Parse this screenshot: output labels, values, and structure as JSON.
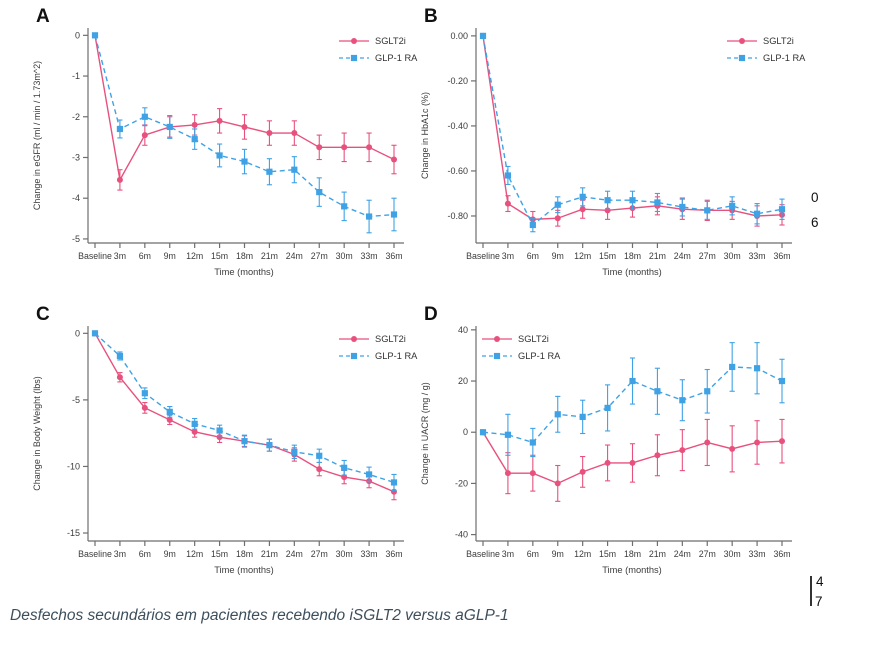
{
  "caption": "Desfechos secundários em pacientes recebendo iSGLT2 versus aGLP-1",
  "colors": {
    "sglt2i": "#e8517e",
    "glp1_ra": "#3ea2e5",
    "axis": "#6e6e6e",
    "tick_text": "#3c3c3c",
    "caption_text": "#3d4f5c"
  },
  "edge_fragments": {
    "mid_right_top": "0",
    "mid_right_bottom": "6",
    "page_line1": "4",
    "page_line2": "7"
  },
  "chart_data": [
    {
      "type": "line",
      "panel_label": "A",
      "ylabel": "Change in eGFR (ml / min / 1.73m^2)",
      "xlabel": "Time (months)",
      "categories": [
        "Baseline",
        "3m",
        "6m",
        "9m",
        "12m",
        "15m",
        "18m",
        "21m",
        "24m",
        "27m",
        "30m",
        "33m",
        "36m"
      ],
      "ylim": [
        -5.1,
        0.18
      ],
      "yticks": [
        0,
        -1,
        -2,
        -3,
        -4,
        -5
      ],
      "ytick_labels": [
        "0",
        "-1",
        "-2",
        "-3",
        "-4",
        "-5"
      ],
      "grid": false,
      "legend_position": "top-right",
      "series": [
        {
          "name": "SGLT2i",
          "color": "#e8517e",
          "marker": "circle",
          "line": "solid",
          "values": [
            0,
            -3.55,
            -2.45,
            -2.25,
            -2.2,
            -2.1,
            -2.25,
            -2.4,
            -2.4,
            -2.75,
            -2.75,
            -2.75,
            -3.05
          ],
          "errors": [
            0.05,
            0.25,
            0.25,
            0.25,
            0.25,
            0.3,
            0.3,
            0.3,
            0.3,
            0.3,
            0.35,
            0.35,
            0.35
          ]
        },
        {
          "name": "GLP-1 RA",
          "color": "#3ea2e5",
          "marker": "square",
          "line": "dashed",
          "values": [
            0,
            -2.3,
            -2.0,
            -2.25,
            -2.55,
            -2.95,
            -3.1,
            -3.35,
            -3.3,
            -3.85,
            -4.2,
            -4.45,
            -4.4
          ],
          "errors": [
            0.05,
            0.22,
            0.22,
            0.28,
            0.25,
            0.28,
            0.3,
            0.32,
            0.32,
            0.35,
            0.35,
            0.4,
            0.4
          ]
        }
      ]
    },
    {
      "type": "line",
      "panel_label": "B",
      "ylabel": "Change in HbA1c (%)",
      "xlabel": "Time (months)",
      "categories": [
        "Baseline",
        "3m",
        "6m",
        "9m",
        "12m",
        "15m",
        "18m",
        "21m",
        "24m",
        "27m",
        "30m",
        "33m",
        "36m"
      ],
      "ylim": [
        -0.92,
        0.035
      ],
      "yticks": [
        0,
        -0.2,
        -0.4,
        -0.6,
        -0.8
      ],
      "ytick_labels": [
        "0.00",
        "-0.20",
        "-0.40",
        "-0.60",
        "-0.80"
      ],
      "grid": false,
      "legend_position": "top-right",
      "series": [
        {
          "name": "SGLT2i",
          "color": "#e8517e",
          "marker": "circle",
          "line": "solid",
          "values": [
            0,
            -0.745,
            -0.815,
            -0.81,
            -0.77,
            -0.775,
            -0.765,
            -0.755,
            -0.77,
            -0.775,
            -0.775,
            -0.8,
            -0.795
          ],
          "errors": [
            0.004,
            0.035,
            0.035,
            0.035,
            0.04,
            0.04,
            0.04,
            0.04,
            0.045,
            0.045,
            0.04,
            0.045,
            0.045
          ]
        },
        {
          "name": "GLP-1 RA",
          "color": "#3ea2e5",
          "marker": "square",
          "line": "dashed",
          "values": [
            0,
            -0.62,
            -0.84,
            -0.75,
            -0.715,
            -0.73,
            -0.73,
            -0.74,
            -0.76,
            -0.775,
            -0.755,
            -0.79,
            -0.77
          ],
          "errors": [
            0.004,
            0.04,
            0.03,
            0.035,
            0.04,
            0.04,
            0.04,
            0.04,
            0.04,
            0.04,
            0.04,
            0.045,
            0.045
          ]
        }
      ]
    },
    {
      "type": "line",
      "panel_label": "C",
      "ylabel": "Change in Body Weight (lbs)",
      "xlabel": "Time (months)",
      "categories": [
        "Baseline",
        "3m",
        "6m",
        "9m",
        "12m",
        "15m",
        "18m",
        "21m",
        "24m",
        "27m",
        "30m",
        "33m",
        "36m"
      ],
      "ylim": [
        -15.6,
        0.55
      ],
      "yticks": [
        0,
        -5,
        -10,
        -15
      ],
      "ytick_labels": [
        "0",
        "-5",
        "-10",
        "-15"
      ],
      "grid": false,
      "legend_position": "top-right",
      "series": [
        {
          "name": "SGLT2i",
          "color": "#e8517e",
          "marker": "circle",
          "line": "solid",
          "values": [
            0,
            -3.3,
            -5.6,
            -6.5,
            -7.4,
            -7.8,
            -8.1,
            -8.4,
            -9.1,
            -10.2,
            -10.8,
            -11.1,
            -11.9
          ],
          "errors": [
            0.12,
            0.35,
            0.4,
            0.35,
            0.4,
            0.4,
            0.4,
            0.45,
            0.5,
            0.5,
            0.5,
            0.5,
            0.6
          ]
        },
        {
          "name": "GLP-1 RA",
          "color": "#3ea2e5",
          "marker": "square",
          "line": "dashed",
          "values": [
            0,
            -1.7,
            -4.5,
            -5.9,
            -6.8,
            -7.3,
            -8.1,
            -8.4,
            -8.9,
            -9.2,
            -10.1,
            -10.6,
            -11.2
          ],
          "errors": [
            0.12,
            0.3,
            0.4,
            0.4,
            0.4,
            0.4,
            0.45,
            0.45,
            0.5,
            0.5,
            0.55,
            0.55,
            0.6
          ]
        }
      ]
    },
    {
      "type": "line",
      "panel_label": "D",
      "ylabel": "Change in UACR (mg / g)",
      "xlabel": "Time (months)",
      "categories": [
        "Baseline",
        "3m",
        "6m",
        "9m",
        "12m",
        "15m",
        "18m",
        "21m",
        "24m",
        "27m",
        "30m",
        "33m",
        "36m"
      ],
      "ylim": [
        -42.5,
        41.5
      ],
      "yticks": [
        40,
        20,
        0,
        -20,
        -40
      ],
      "ytick_labels": [
        "40",
        "20",
        "0",
        "-20",
        "-40"
      ],
      "grid": false,
      "legend_position": "top-left",
      "series": [
        {
          "name": "SGLT2i",
          "color": "#e8517e",
          "marker": "circle",
          "line": "solid",
          "values": [
            0,
            -16,
            -16,
            -20,
            -15.5,
            -12,
            -12,
            -9,
            -7,
            -4,
            -6.5,
            -4,
            -3.5
          ],
          "errors": [
            0.6,
            8,
            7,
            7,
            6,
            7,
            7.5,
            8,
            8,
            9,
            9,
            8.5,
            8.5
          ]
        },
        {
          "name": "GLP-1 RA",
          "color": "#3ea2e5",
          "marker": "square",
          "line": "dashed",
          "values": [
            0,
            -1,
            -4,
            7,
            6,
            9.5,
            20,
            16,
            12.5,
            16,
            25.5,
            25,
            20
          ],
          "errors": [
            0.6,
            8,
            5.5,
            7,
            6.5,
            9,
            9,
            9,
            8,
            8.5,
            9.5,
            10,
            8.5
          ]
        }
      ]
    }
  ]
}
